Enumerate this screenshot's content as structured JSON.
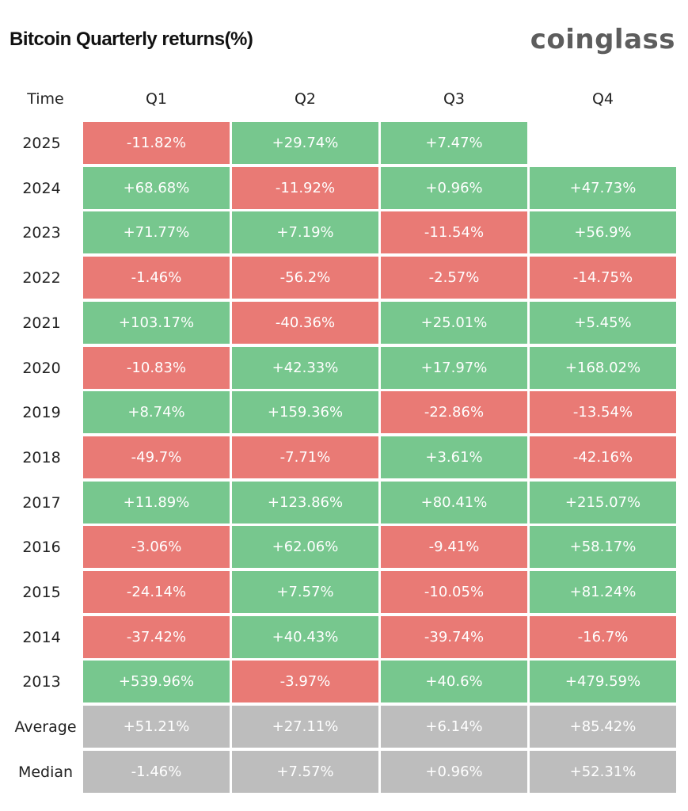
{
  "title": "Bitcoin Quarterly returns(%)",
  "brand": "coinglass",
  "colors": {
    "positive": "#77c78e",
    "negative": "#e97a75",
    "summary": "#bdbdbd"
  },
  "chart_data": {
    "type": "table",
    "row_header": "Time",
    "columns": [
      "Q1",
      "Q2",
      "Q3",
      "Q4"
    ],
    "rows": [
      {
        "label": "2025",
        "kind": "year",
        "cells": [
          "-11.82%",
          "+29.74%",
          "+7.47%",
          null
        ]
      },
      {
        "label": "2024",
        "kind": "year",
        "cells": [
          "+68.68%",
          "-11.92%",
          "+0.96%",
          "+47.73%"
        ]
      },
      {
        "label": "2023",
        "kind": "year",
        "cells": [
          "+71.77%",
          "+7.19%",
          "-11.54%",
          "+56.9%"
        ]
      },
      {
        "label": "2022",
        "kind": "year",
        "cells": [
          "-1.46%",
          "-56.2%",
          "-2.57%",
          "-14.75%"
        ]
      },
      {
        "label": "2021",
        "kind": "year",
        "cells": [
          "+103.17%",
          "-40.36%",
          "+25.01%",
          "+5.45%"
        ]
      },
      {
        "label": "2020",
        "kind": "year",
        "cells": [
          "-10.83%",
          "+42.33%",
          "+17.97%",
          "+168.02%"
        ]
      },
      {
        "label": "2019",
        "kind": "year",
        "cells": [
          "+8.74%",
          "+159.36%",
          "-22.86%",
          "-13.54%"
        ]
      },
      {
        "label": "2018",
        "kind": "year",
        "cells": [
          "-49.7%",
          "-7.71%",
          "+3.61%",
          "-42.16%"
        ]
      },
      {
        "label": "2017",
        "kind": "year",
        "cells": [
          "+11.89%",
          "+123.86%",
          "+80.41%",
          "+215.07%"
        ]
      },
      {
        "label": "2016",
        "kind": "year",
        "cells": [
          "-3.06%",
          "+62.06%",
          "-9.41%",
          "+58.17%"
        ]
      },
      {
        "label": "2015",
        "kind": "year",
        "cells": [
          "-24.14%",
          "+7.57%",
          "-10.05%",
          "+81.24%"
        ]
      },
      {
        "label": "2014",
        "kind": "year",
        "cells": [
          "-37.42%",
          "+40.43%",
          "-39.74%",
          "-16.7%"
        ]
      },
      {
        "label": "2013",
        "kind": "year",
        "cells": [
          "+539.96%",
          "-3.97%",
          "+40.6%",
          "+479.59%"
        ]
      },
      {
        "label": "Average",
        "kind": "summary",
        "cells": [
          "+51.21%",
          "+27.11%",
          "+6.14%",
          "+85.42%"
        ]
      },
      {
        "label": "Median",
        "kind": "summary",
        "cells": [
          "-1.46%",
          "+7.57%",
          "+0.96%",
          "+52.31%"
        ]
      }
    ]
  }
}
